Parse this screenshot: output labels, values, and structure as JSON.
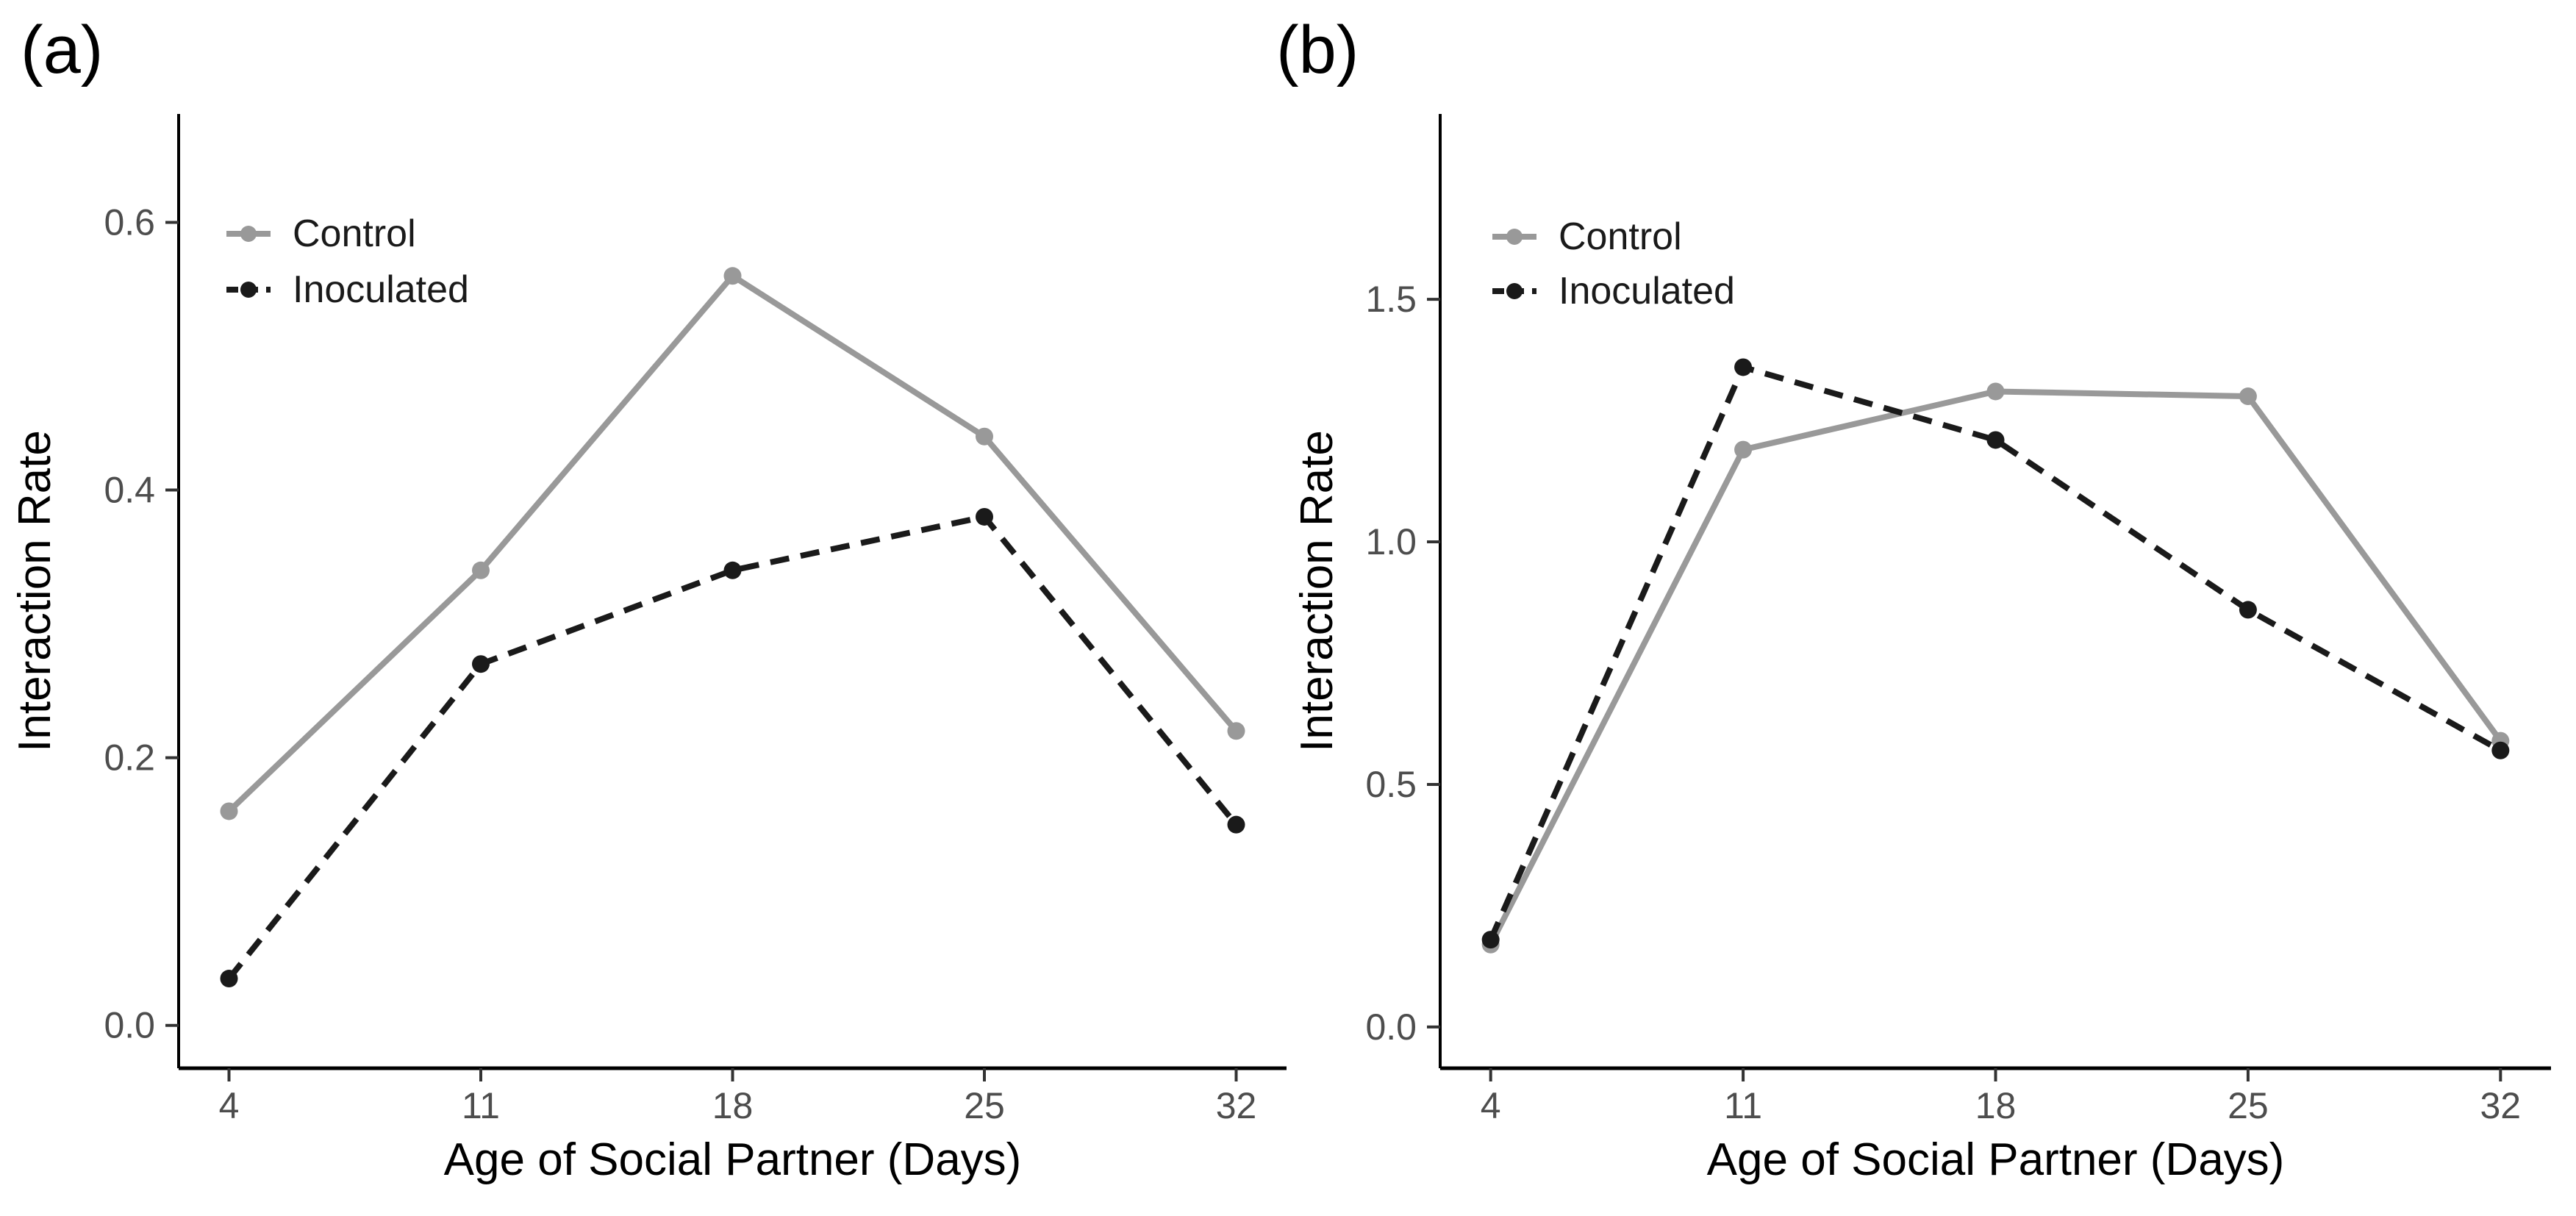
{
  "colors": {
    "control": "#999999",
    "inoculated": "#1a1a1a",
    "axis": "#000000",
    "tick_labels": "#4d4d4d",
    "axis_titles": "#000000",
    "legend_text": "#1a1a1a",
    "background": "#ffffff"
  },
  "chart_data": [
    {
      "type": "line",
      "panel_label": "(a)",
      "title": "",
      "xlabel": "Age of Social Partner (Days)",
      "ylabel": "Interaction Rate",
      "x": [
        4,
        11,
        18,
        25,
        32
      ],
      "xtick_labels": [
        "4",
        "11",
        "18",
        "25",
        "32"
      ],
      "yticks": [
        0.0,
        0.2,
        0.4,
        0.6
      ],
      "ytick_labels": [
        "0.0",
        "0.2",
        "0.4",
        "0.6"
      ],
      "xlim": [
        2.6,
        33.4
      ],
      "ylim": [
        -0.032,
        0.681
      ],
      "grid": false,
      "legend_position": "top-left",
      "series": [
        {
          "name": "Control",
          "color": "#999999",
          "dash": "solid",
          "values": [
            0.16,
            0.34,
            0.56,
            0.44,
            0.22
          ]
        },
        {
          "name": "Inoculated",
          "color": "#1a1a1a",
          "dash": "dashed",
          "values": [
            0.035,
            0.27,
            0.34,
            0.38,
            0.15
          ]
        }
      ]
    },
    {
      "type": "line",
      "panel_label": "(b)",
      "title": "",
      "xlabel": "Age of Social Partner (Days)",
      "ylabel": "Interaction Rate",
      "x": [
        4,
        11,
        18,
        25,
        32
      ],
      "xtick_labels": [
        "4",
        "11",
        "18",
        "25",
        "32"
      ],
      "yticks": [
        0.0,
        0.5,
        1.0,
        1.5
      ],
      "ytick_labels": [
        "0.0",
        "0.5",
        "1.0",
        "1.5"
      ],
      "xlim": [
        2.6,
        33.4
      ],
      "ylim": [
        -0.085,
        1.882
      ],
      "grid": false,
      "legend_position": "top-left",
      "series": [
        {
          "name": "Control",
          "color": "#999999",
          "dash": "solid",
          "values": [
            0.17,
            1.19,
            1.31,
            1.3,
            0.59
          ]
        },
        {
          "name": "Inoculated",
          "color": "#1a1a1a",
          "dash": "dashed",
          "values": [
            0.18,
            1.36,
            1.21,
            0.86,
            0.57
          ]
        }
      ]
    }
  ]
}
